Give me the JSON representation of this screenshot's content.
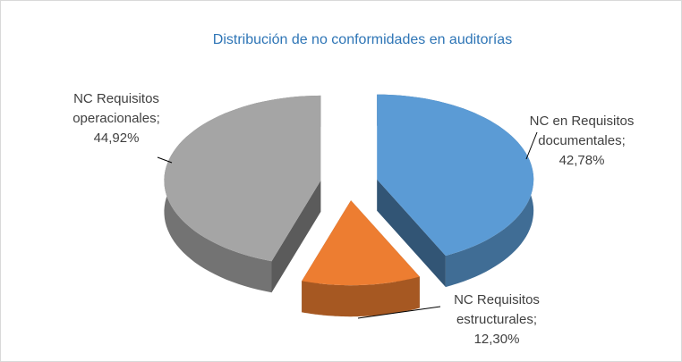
{
  "chart_data": {
    "type": "pie3d",
    "title": "Distribución de no conformidades en auditorías",
    "categories": [
      "NC en Requisitos documentales",
      "NC Requisitos estructurales",
      "NC Requisitos operacionales"
    ],
    "values": [
      42.78,
      12.3,
      44.92
    ],
    "value_labels": [
      "42,78%",
      "12,30%",
      "44,92%"
    ],
    "label_separator": ";",
    "colors": [
      "#5b9bd5",
      "#ed7d31",
      "#a5a5a5"
    ],
    "exploded": true
  }
}
